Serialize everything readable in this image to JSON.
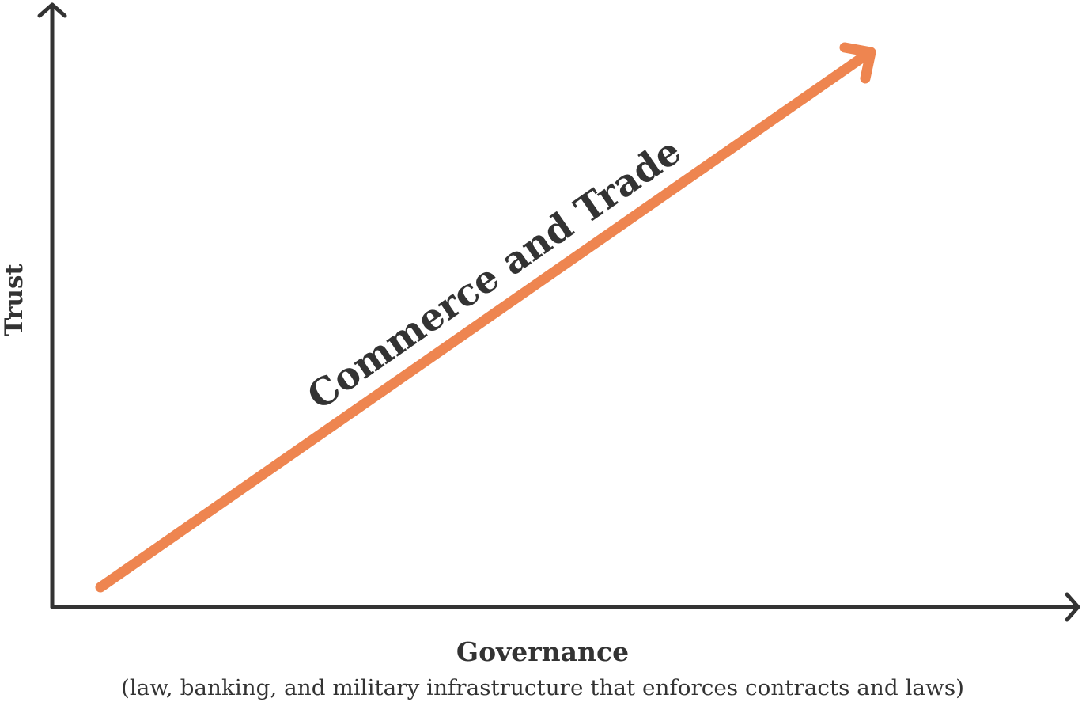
{
  "axes": {
    "y_label": "Trust",
    "x_label": "Governance",
    "x_sublabel": "(law, banking, and military infrastructure that enforces contracts and laws)",
    "color": "#333333"
  },
  "arrow": {
    "label": "Commerce and Trade",
    "color": "#ee8550",
    "direction": "up-right"
  }
}
